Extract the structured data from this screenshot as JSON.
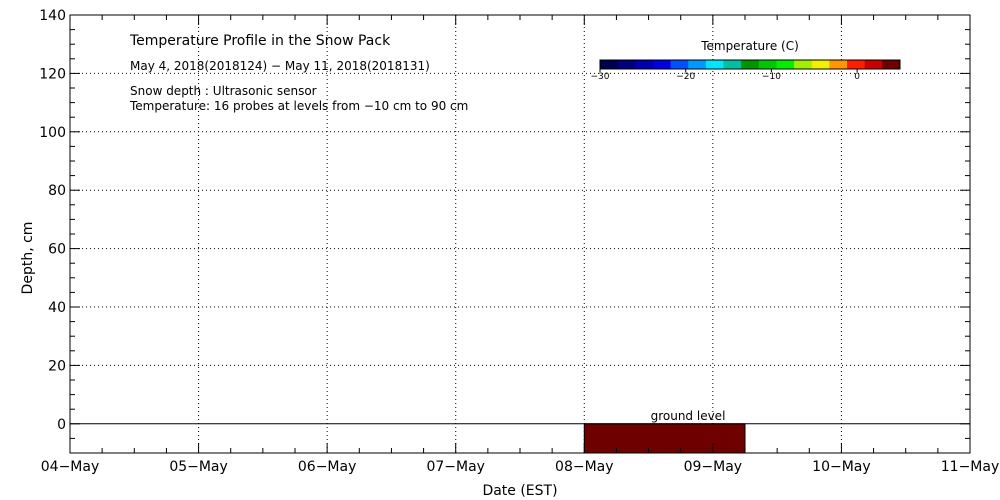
{
  "chart_data": {
    "type": "heatmap",
    "title": "Temperature Profile in the Snow Pack",
    "subtitle": "May  4, 2018(2018124) − May 11, 2018(2018131)",
    "notes": [
      "Snow depth : Ultrasonic sensor",
      "Temperature: 16 probes at levels from −10 cm to 90 cm"
    ],
    "xlabel": "Date (EST)",
    "ylabel": "Depth, cm",
    "x_ticks": [
      "04−May",
      "05−May",
      "06−May",
      "07−May",
      "08−May",
      "09−May",
      "10−May",
      "11−May"
    ],
    "xlim_days": [
      0,
      7
    ],
    "ylim": [
      -10,
      140
    ],
    "y_ticks": [
      0,
      20,
      40,
      60,
      80,
      100,
      120,
      140
    ],
    "y_minor_step": 5,
    "grid": true,
    "ground_label": "ground level",
    "ground_level": 0,
    "colorbar": {
      "title": "Temperature (C)",
      "range": [
        -30,
        5
      ],
      "ticks": [
        -30,
        -20,
        -10,
        0
      ],
      "tick_labels": [
        "−30",
        "−20",
        "−10",
        "0"
      ],
      "colors": [
        "#000050",
        "#00007a",
        "#0000b0",
        "#0000e6",
        "#0050ff",
        "#0099ff",
        "#00e6ff",
        "#00c0a0",
        "#009600",
        "#00c800",
        "#00f000",
        "#a0f000",
        "#f0f000",
        "#ff9600",
        "#ff1e00",
        "#c80000",
        "#6e0000"
      ]
    },
    "data_block": {
      "x_start_day": 4.0,
      "x_end_day": 5.25,
      "y_from": -10,
      "y_to": 0,
      "color": "#6e0000"
    }
  }
}
